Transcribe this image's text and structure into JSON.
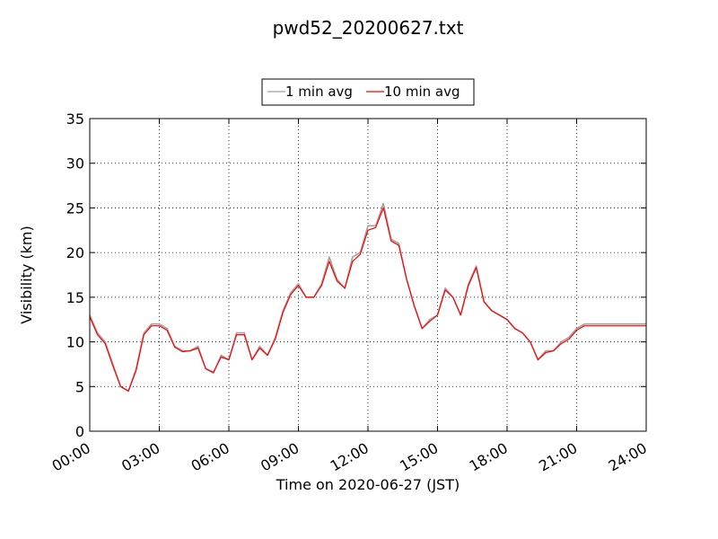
{
  "chart_data": {
    "type": "line",
    "title": "pwd52_20200627.txt",
    "xlabel": "Time on 2020-06-27 (JST)",
    "ylabel": "Visibility (km)",
    "xlim": [
      "00:00",
      "24:00"
    ],
    "ylim": [
      0,
      35
    ],
    "x_ticks": [
      "00:00",
      "03:00",
      "06:00",
      "09:00",
      "12:00",
      "15:00",
      "18:00",
      "21:00",
      "24:00"
    ],
    "y_ticks": [
      "0",
      "5",
      "10",
      "15",
      "20",
      "25",
      "30",
      "35"
    ],
    "grid": true,
    "legend_placement": "top-center",
    "series": [
      {
        "name": "1 min avg",
        "color": "#a0a0a0",
        "x": [
          "00:00",
          "00:20",
          "00:40",
          "01:00",
          "01:20",
          "01:40",
          "02:00",
          "02:20",
          "02:40",
          "03:00",
          "03:20",
          "03:40",
          "04:00",
          "04:20",
          "04:40",
          "05:00",
          "05:20",
          "05:40",
          "06:00",
          "06:20",
          "06:40",
          "07:00",
          "07:20",
          "07:40",
          "08:00",
          "08:20",
          "08:40",
          "09:00",
          "09:20",
          "09:40",
          "10:00",
          "10:20",
          "10:40",
          "11:00",
          "11:20",
          "11:40",
          "12:00",
          "12:20",
          "12:40",
          "13:00",
          "13:20",
          "13:40",
          "14:00",
          "14:20",
          "14:40",
          "15:00",
          "15:20",
          "15:40",
          "16:00",
          "16:20",
          "16:40",
          "17:00",
          "17:20",
          "17:40",
          "18:00",
          "18:20",
          "18:40",
          "19:00",
          "19:20",
          "19:40",
          "20:00",
          "20:20",
          "20:40",
          "21:00",
          "21:20",
          "21:40",
          "22:00",
          "22:20",
          "22:40",
          "23:00",
          "23:20",
          "23:40",
          "24:00"
        ],
        "y": [
          13.0,
          11.0,
          10.0,
          7.5,
          5.0,
          4.5,
          7.0,
          11.0,
          12.0,
          12.0,
          11.5,
          9.5,
          9.0,
          9.0,
          9.5,
          7.0,
          6.5,
          8.5,
          8.0,
          11.0,
          11.0,
          8.0,
          9.5,
          8.5,
          10.5,
          13.5,
          15.5,
          16.5,
          15.0,
          15.0,
          16.5,
          19.5,
          17.0,
          16.0,
          19.5,
          20.0,
          23.0,
          23.0,
          25.5,
          21.5,
          21.0,
          17.0,
          14.0,
          11.5,
          12.5,
          13.0,
          16.0,
          15.0,
          13.0,
          16.5,
          18.5,
          14.5,
          13.5,
          13.0,
          12.5,
          11.5,
          11.0,
          10.0,
          8.0,
          9.0,
          9.0,
          10.0,
          10.5,
          11.5,
          12.0,
          12.0,
          12.0,
          12.0,
          12.0,
          12.0,
          12.0,
          12.0,
          12.0
        ]
      },
      {
        "name": "10 min avg",
        "color": "#ff0000",
        "x": [
          "00:00",
          "00:20",
          "00:40",
          "01:00",
          "01:20",
          "01:40",
          "02:00",
          "02:20",
          "02:40",
          "03:00",
          "03:20",
          "03:40",
          "04:00",
          "04:20",
          "04:40",
          "05:00",
          "05:20",
          "05:40",
          "06:00",
          "06:20",
          "06:40",
          "07:00",
          "07:20",
          "07:40",
          "08:00",
          "08:20",
          "08:40",
          "09:00",
          "09:20",
          "09:40",
          "10:00",
          "10:20",
          "10:40",
          "11:00",
          "11:20",
          "11:40",
          "12:00",
          "12:20",
          "12:40",
          "13:00",
          "13:20",
          "13:40",
          "14:00",
          "14:20",
          "14:40",
          "15:00",
          "15:20",
          "15:40",
          "16:00",
          "16:20",
          "16:40",
          "17:00",
          "17:20",
          "17:40",
          "18:00",
          "18:20",
          "18:40",
          "19:00",
          "19:20",
          "19:40",
          "20:00",
          "20:20",
          "20:40",
          "21:00",
          "21:20",
          "21:40",
          "22:00",
          "22:20",
          "22:40",
          "23:00",
          "23:20",
          "23:40",
          "24:00"
        ],
        "y": [
          12.8,
          10.8,
          9.8,
          7.3,
          5.0,
          4.5,
          6.8,
          10.8,
          11.8,
          11.8,
          11.3,
          9.4,
          8.9,
          9.0,
          9.3,
          7.0,
          6.6,
          8.3,
          8.0,
          10.8,
          10.8,
          8.0,
          9.3,
          8.5,
          10.3,
          13.3,
          15.3,
          16.3,
          15.0,
          15.0,
          16.3,
          19.0,
          16.8,
          16.0,
          19.0,
          19.8,
          22.5,
          22.8,
          25.0,
          21.3,
          20.8,
          17.0,
          14.0,
          11.5,
          12.3,
          13.0,
          15.8,
          15.0,
          13.0,
          16.3,
          18.3,
          14.5,
          13.5,
          13.0,
          12.5,
          11.5,
          11.0,
          10.0,
          8.0,
          8.8,
          9.0,
          9.8,
          10.3,
          11.3,
          11.8,
          11.8,
          11.8,
          11.8,
          11.8,
          11.8,
          11.8,
          11.8,
          11.8
        ]
      }
    ]
  }
}
